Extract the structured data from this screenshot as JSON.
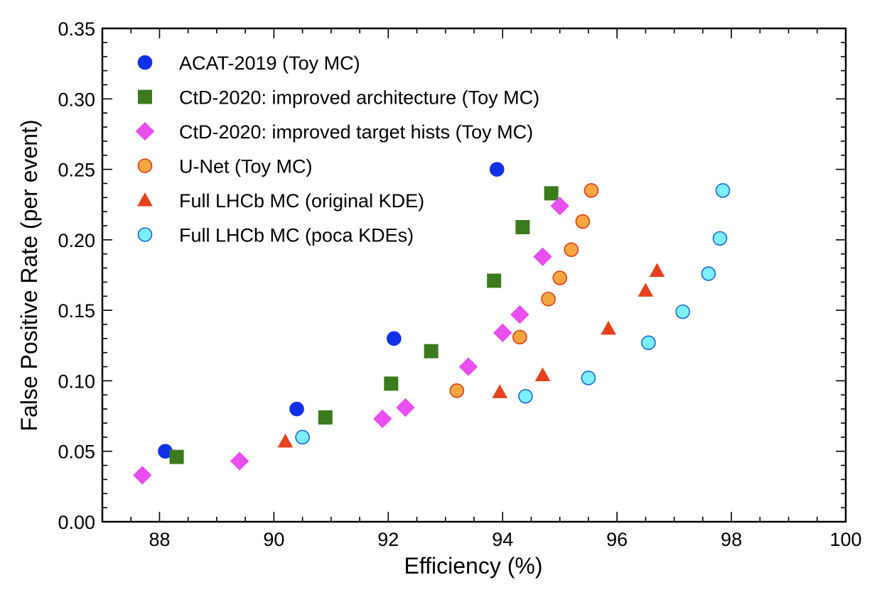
{
  "chart_data": {
    "type": "scatter",
    "title": "",
    "xlabel": "Efficiency (%)",
    "ylabel": "False Positive Rate (per event)",
    "xlim": [
      87,
      100
    ],
    "ylim": [
      0.0,
      0.35
    ],
    "x_ticks": [
      "88",
      "90",
      "92",
      "94",
      "96",
      "98",
      "100"
    ],
    "y_ticks": [
      "0.00",
      "0.05",
      "0.10",
      "0.15",
      "0.20",
      "0.25",
      "0.30",
      "0.35"
    ],
    "grid": false,
    "legend_position": "top-left",
    "series": [
      {
        "name": "ACAT-2019 (Toy MC)",
        "marker": "circle",
        "color": "#1030e8",
        "stroke": "#1030e8",
        "points": [
          [
            88.1,
            0.05
          ],
          [
            90.4,
            0.08
          ],
          [
            92.1,
            0.13
          ],
          [
            93.9,
            0.25
          ]
        ]
      },
      {
        "name": "CtD-2020: improved architecture (Toy MC)",
        "marker": "square",
        "color": "#3c7a1e",
        "stroke": "#3c7a1e",
        "points": [
          [
            88.3,
            0.046
          ],
          [
            90.9,
            0.074
          ],
          [
            92.05,
            0.098
          ],
          [
            92.75,
            0.121
          ],
          [
            93.85,
            0.171
          ],
          [
            94.35,
            0.209
          ],
          [
            94.85,
            0.233
          ]
        ]
      },
      {
        "name": "CtD-2020: improved target hists (Toy MC)",
        "marker": "diamond",
        "color": "#e84ef0",
        "stroke": "#e84ef0",
        "points": [
          [
            87.7,
            0.033
          ],
          [
            89.4,
            0.043
          ],
          [
            91.9,
            0.073
          ],
          [
            92.3,
            0.081
          ],
          [
            93.4,
            0.11
          ],
          [
            94.0,
            0.134
          ],
          [
            94.3,
            0.147
          ],
          [
            94.7,
            0.188
          ],
          [
            95.0,
            0.224
          ]
        ]
      },
      {
        "name": "U-Net (Toy MC)",
        "marker": "circle",
        "color": "#f5a640",
        "stroke": "#e03a14",
        "points": [
          [
            93.2,
            0.093
          ],
          [
            94.3,
            0.131
          ],
          [
            94.8,
            0.158
          ],
          [
            95.0,
            0.173
          ],
          [
            95.2,
            0.193
          ],
          [
            95.4,
            0.213
          ],
          [
            95.55,
            0.235
          ]
        ]
      },
      {
        "name": "Full LHCb MC (original KDE)",
        "marker": "triangle",
        "color": "#e8401c",
        "stroke": "#e8401c",
        "points": [
          [
            90.2,
            0.057
          ],
          [
            93.95,
            0.092
          ],
          [
            94.7,
            0.104
          ],
          [
            95.85,
            0.137
          ],
          [
            96.5,
            0.164
          ],
          [
            96.7,
            0.178
          ]
        ]
      },
      {
        "name": "Full LHCb MC (poca KDEs)",
        "marker": "circle",
        "color": "#7cf0ff",
        "stroke": "#1868d8",
        "points": [
          [
            90.5,
            0.06
          ],
          [
            94.4,
            0.089
          ],
          [
            95.5,
            0.102
          ],
          [
            96.55,
            0.127
          ],
          [
            97.15,
            0.149
          ],
          [
            97.6,
            0.176
          ],
          [
            97.8,
            0.201
          ],
          [
            97.85,
            0.235
          ]
        ]
      }
    ]
  }
}
